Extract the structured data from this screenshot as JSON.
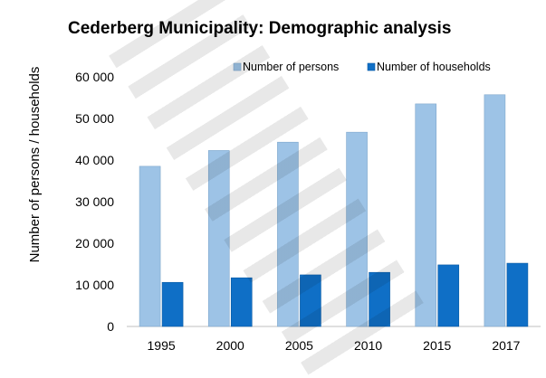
{
  "chart_data": {
    "type": "bar",
    "title": "Cederberg Municipality: Demographic analysis",
    "xlabel": "",
    "ylabel": "Number of persons / households",
    "categories": [
      "1995",
      "2000",
      "2005",
      "2010",
      "2015",
      "2017"
    ],
    "series": [
      {
        "name": "Number of persons",
        "color": "#9DC3E6",
        "values": [
          38500,
          42300,
          44300,
          46700,
          53500,
          55700
        ]
      },
      {
        "name": "Number of households",
        "color": "#0F6FC6",
        "values": [
          10600,
          11700,
          12400,
          13000,
          14800,
          15200
        ]
      }
    ],
    "ylim": [
      0,
      60000
    ],
    "yticks": [
      "0",
      "10 000",
      "20 000",
      "30 000",
      "40 000",
      "50 000",
      "60 000"
    ],
    "grid": false,
    "legend_position": "top-right"
  }
}
